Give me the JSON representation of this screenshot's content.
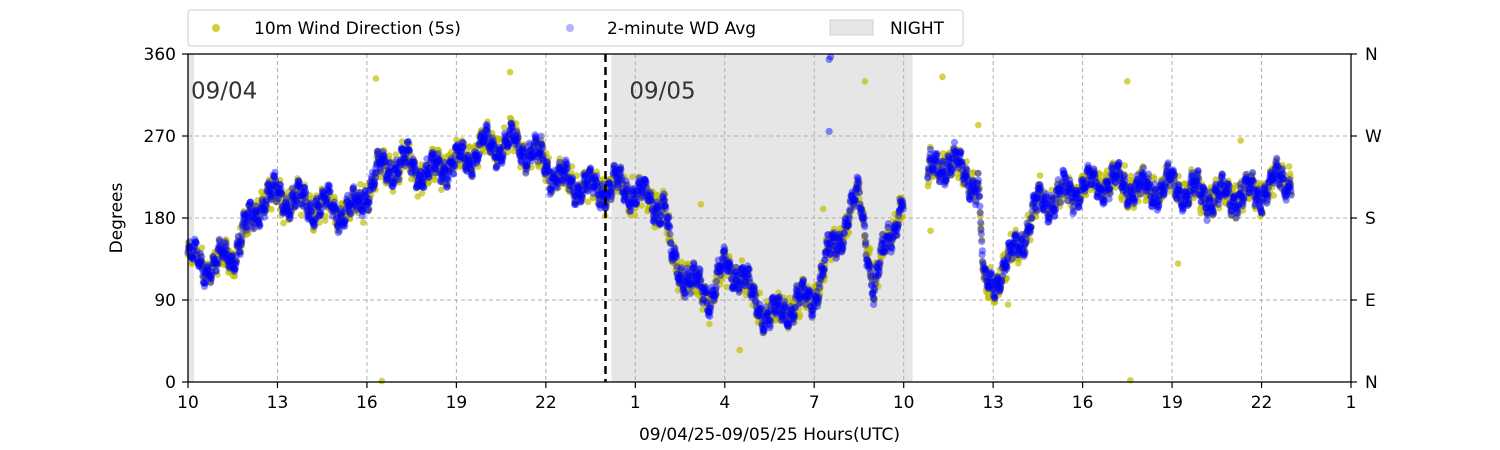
{
  "chart_data": {
    "type": "scatter",
    "xlabel": "09/04/25-09/05/25  Hours(UTC)",
    "ylabel": "Degrees",
    "ylim": [
      0,
      360
    ],
    "xlim_hours": [
      10,
      49
    ],
    "x_tick_values": [
      10,
      13,
      16,
      19,
      22,
      25,
      28,
      31,
      34,
      37,
      40,
      43,
      46,
      49
    ],
    "x_tick_labels": [
      "10",
      "13",
      "16",
      "19",
      "22",
      "1",
      "4",
      "7",
      "10",
      "13",
      "16",
      "19",
      "22",
      "1"
    ],
    "y_ticks": [
      0,
      90,
      180,
      270,
      360
    ],
    "y_tick_labels": [
      "0",
      "90",
      "180",
      "270",
      "360"
    ],
    "right_axis_labels": [
      "N",
      "E",
      "S",
      "W",
      "N"
    ],
    "grid": true,
    "legend_position": "top-left, above plot",
    "legend": [
      {
        "label": "10m Wind Direction (5s)",
        "kind": "marker",
        "color": "#bfbf00"
      },
      {
        "label": "2-minute WD Avg",
        "kind": "marker",
        "color": "#0000ff"
      },
      {
        "label": "NIGHT",
        "kind": "patch",
        "color": "#e0e0e0"
      }
    ],
    "date_labels": [
      {
        "text": "09/04",
        "x_hour": 10.1,
        "y": 322
      },
      {
        "text": "09/05",
        "x_hour": 24.8,
        "y": 322
      }
    ],
    "midnight_line_hour": 24.0,
    "night_spans_hours": [
      [
        10.0,
        10.2
      ],
      [
        24.2,
        34.3
      ]
    ],
    "series": [
      {
        "name": "10m Wind Direction (5s)",
        "color": "#bfbf00",
        "spread": 22,
        "profile": [
          [
            10.0,
            135
          ],
          [
            10.5,
            128
          ],
          [
            11.0,
            130
          ],
          [
            11.5,
            140
          ],
          [
            12.0,
            170
          ],
          [
            12.5,
            200
          ],
          [
            13.0,
            205
          ],
          [
            14.0,
            195
          ],
          [
            15.0,
            190
          ],
          [
            15.5,
            185
          ],
          [
            16.0,
            210
          ],
          [
            16.5,
            235
          ],
          [
            17.5,
            240
          ],
          [
            18.0,
            225
          ],
          [
            18.5,
            240
          ],
          [
            19.0,
            240
          ],
          [
            20.0,
            258
          ],
          [
            21.0,
            262
          ],
          [
            22.0,
            240
          ],
          [
            22.5,
            222
          ],
          [
            23.5,
            212
          ],
          [
            24.5,
            215
          ],
          [
            25.5,
            200
          ],
          [
            26.0,
            190
          ],
          [
            26.2,
            135
          ],
          [
            27.0,
            105
          ],
          [
            27.5,
            95
          ],
          [
            28.0,
            125
          ],
          [
            28.5,
            120
          ],
          [
            29.0,
            90
          ],
          [
            29.5,
            70
          ],
          [
            30.0,
            80
          ],
          [
            31.0,
            95
          ],
          [
            31.5,
            140
          ],
          [
            32.0,
            170
          ],
          [
            32.5,
            205
          ],
          [
            32.7,
            170
          ],
          [
            33.0,
            100
          ],
          [
            33.5,
            160
          ],
          [
            34.0,
            200
          ],
          [
            35.5,
            245
          ],
          [
            36.5,
            215
          ],
          [
            36.7,
            100
          ],
          [
            37.5,
            130
          ],
          [
            38.0,
            160
          ],
          [
            38.5,
            195
          ],
          [
            40.0,
            215
          ],
          [
            41.0,
            220
          ],
          [
            42.0,
            210
          ],
          [
            43.0,
            215
          ],
          [
            44.0,
            205
          ],
          [
            45.0,
            205
          ],
          [
            46.0,
            210
          ],
          [
            46.5,
            220
          ],
          [
            47.0,
            225
          ]
        ],
        "outliers": [
          [
            16.3,
            333
          ],
          [
            16.5,
            1
          ],
          [
            20.8,
            340
          ],
          [
            27.2,
            195
          ],
          [
            28.5,
            35
          ],
          [
            31.3,
            190
          ],
          [
            32.7,
            330
          ],
          [
            34.9,
            166
          ],
          [
            35.3,
            335
          ],
          [
            36.5,
            282
          ],
          [
            37.5,
            85
          ],
          [
            41.5,
            330
          ],
          [
            41.6,
            2
          ],
          [
            43.2,
            130
          ],
          [
            45.3,
            265
          ]
        ]
      },
      {
        "name": "2-minute WD Avg",
        "color": "#0000ff",
        "spread": 11,
        "profile": [
          [
            10.0,
            135
          ],
          [
            10.5,
            128
          ],
          [
            11.0,
            130
          ],
          [
            11.5,
            140
          ],
          [
            12.0,
            170
          ],
          [
            12.5,
            200
          ],
          [
            13.0,
            205
          ],
          [
            14.0,
            195
          ],
          [
            15.0,
            190
          ],
          [
            15.5,
            185
          ],
          [
            16.0,
            210
          ],
          [
            16.5,
            235
          ],
          [
            17.5,
            240
          ],
          [
            18.0,
            225
          ],
          [
            18.5,
            240
          ],
          [
            19.0,
            240
          ],
          [
            20.0,
            258
          ],
          [
            21.0,
            262
          ],
          [
            22.0,
            240
          ],
          [
            22.5,
            222
          ],
          [
            23.5,
            212
          ],
          [
            24.5,
            215
          ],
          [
            25.5,
            200
          ],
          [
            26.0,
            190
          ],
          [
            26.2,
            135
          ],
          [
            27.0,
            105
          ],
          [
            27.5,
            95
          ],
          [
            28.0,
            125
          ],
          [
            28.5,
            120
          ],
          [
            29.0,
            90
          ],
          [
            29.5,
            70
          ],
          [
            30.0,
            80
          ],
          [
            31.0,
            95
          ],
          [
            31.5,
            140
          ],
          [
            32.0,
            170
          ],
          [
            32.5,
            205
          ],
          [
            32.7,
            170
          ],
          [
            33.0,
            100
          ],
          [
            33.5,
            160
          ],
          [
            34.0,
            200
          ],
          [
            35.5,
            245
          ],
          [
            36.5,
            215
          ],
          [
            36.7,
            100
          ],
          [
            37.5,
            130
          ],
          [
            38.0,
            160
          ],
          [
            38.5,
            195
          ],
          [
            40.0,
            215
          ],
          [
            41.0,
            220
          ],
          [
            42.0,
            210
          ],
          [
            43.0,
            215
          ],
          [
            44.0,
            205
          ],
          [
            45.0,
            205
          ],
          [
            46.0,
            210
          ],
          [
            46.5,
            220
          ],
          [
            47.0,
            225
          ]
        ],
        "outliers": [
          [
            31.5,
            354
          ],
          [
            31.55,
            357
          ],
          [
            31.5,
            275
          ]
        ]
      }
    ],
    "data_gap_hours": [
      [
        34.0,
        34.8
      ]
    ],
    "x_end_hour": 47.0
  }
}
